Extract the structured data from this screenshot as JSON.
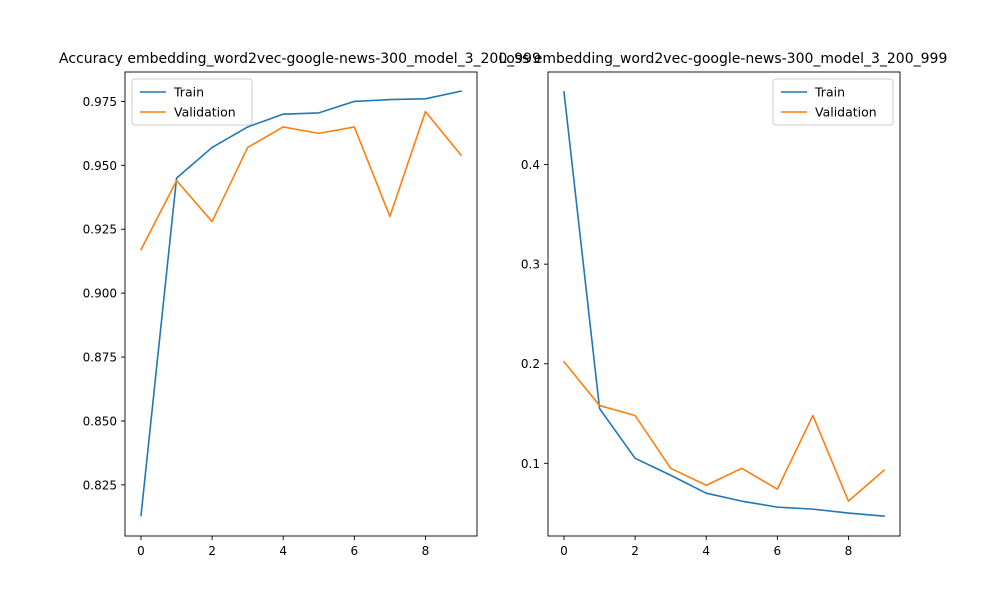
{
  "chart_data": [
    {
      "type": "line",
      "title": "Accuracy embedding_word2vec-google-news-300_model_3_200_999",
      "xlabel": "",
      "ylabel": "",
      "x": [
        0,
        1,
        2,
        3,
        4,
        5,
        6,
        7,
        8,
        9
      ],
      "xticks": [
        0,
        2,
        4,
        6,
        8
      ],
      "yticks": [
        0.825,
        0.85,
        0.875,
        0.9,
        0.925,
        0.95,
        0.975
      ],
      "tick_decimals": 3,
      "xlim": [
        -0.45,
        9.45
      ],
      "ylim": [
        0.805,
        0.9865
      ],
      "legend": "top-left",
      "grid": false,
      "series": [
        {
          "name": "Train",
          "color": "#1f77b4",
          "values": [
            0.813,
            0.945,
            0.957,
            0.965,
            0.97,
            0.9705,
            0.975,
            0.9757,
            0.976,
            0.979
          ]
        },
        {
          "name": "Validation",
          "color": "#ff7f0e",
          "values": [
            0.917,
            0.944,
            0.928,
            0.957,
            0.965,
            0.9625,
            0.965,
            0.93,
            0.971,
            0.954
          ]
        }
      ]
    },
    {
      "type": "line",
      "title": "Loss embedding_word2vec-google-news-300_model_3_200_999",
      "xlabel": "",
      "ylabel": "",
      "x": [
        0,
        1,
        2,
        3,
        4,
        5,
        6,
        7,
        8,
        9
      ],
      "xticks": [
        0,
        2,
        4,
        6,
        8
      ],
      "yticks": [
        0.1,
        0.2,
        0.3,
        0.4
      ],
      "tick_decimals": 1,
      "xlim": [
        -0.45,
        9.45
      ],
      "ylim": [
        0.027,
        0.493
      ],
      "legend": "top-right",
      "grid": false,
      "series": [
        {
          "name": "Train",
          "color": "#1f77b4",
          "values": [
            0.473,
            0.155,
            0.105,
            0.088,
            0.07,
            0.062,
            0.056,
            0.054,
            0.05,
            0.047
          ]
        },
        {
          "name": "Validation",
          "color": "#ff7f0e",
          "values": [
            0.202,
            0.158,
            0.148,
            0.095,
            0.078,
            0.095,
            0.074,
            0.148,
            0.062,
            0.093
          ]
        }
      ]
    }
  ]
}
